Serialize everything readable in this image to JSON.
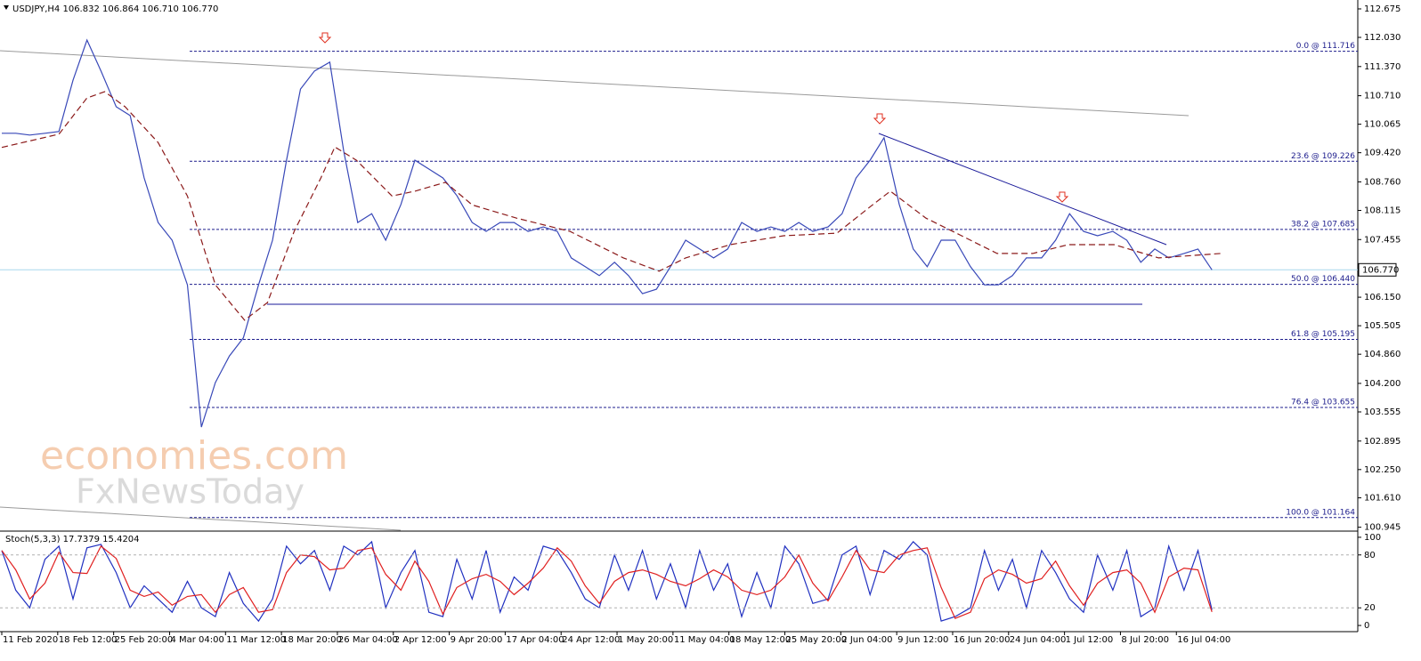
{
  "chart_data": [
    {
      "type": "line",
      "title": "USDJPY,H4  106.832 106.864 106.710 106.770",
      "annotations": [
        "economies.com",
        "FxNewsToday"
      ],
      "xlim": [
        0,
        1066
      ],
      "ylim": [
        100.857,
        112.876
      ],
      "xticks": [
        {
          "value": 0,
          "label": "11 Feb 2020"
        },
        {
          "value": 44,
          "label": "18 Feb 12:00"
        },
        {
          "value": 88,
          "label": "25 Feb 20:00"
        },
        {
          "value": 132,
          "label": "4 Mar 04:00"
        },
        {
          "value": 176,
          "label": "11 Mar 12:00"
        },
        {
          "value": 220,
          "label": "18 Mar 20:00"
        },
        {
          "value": 264,
          "label": "26 Mar 04:00"
        },
        {
          "value": 308,
          "label": "2 Apr 12:00"
        },
        {
          "value": 352,
          "label": "9 Apr 20:00"
        },
        {
          "value": 396,
          "label": "17 Apr 04:00"
        },
        {
          "value": 440,
          "label": "24 Apr 12:00"
        },
        {
          "value": 484,
          "label": "1 May 20:00"
        },
        {
          "value": 528,
          "label": "11 May 04:00"
        },
        {
          "value": 572,
          "label": "18 May 12:00"
        },
        {
          "value": 616,
          "label": "25 May 20:00"
        },
        {
          "value": 660,
          "label": "2 Jun 04:00"
        },
        {
          "value": 704,
          "label": "9 Jun 12:00"
        },
        {
          "value": 748,
          "label": "16 Jun 20:00"
        },
        {
          "value": 792,
          "label": "24 Jun 04:00"
        },
        {
          "value": 836,
          "label": "1 Jul 12:00"
        },
        {
          "value": 880,
          "label": "8 Jul 20:00"
        },
        {
          "value": 924,
          "label": "16 Jul 04:00"
        }
      ],
      "yticks": [
        {
          "value": 112.675,
          "label": "112.675"
        },
        {
          "value": 112.03,
          "label": "112.030"
        },
        {
          "value": 111.37,
          "label": "111.370"
        },
        {
          "value": 110.71,
          "label": "110.710"
        },
        {
          "value": 110.065,
          "label": "110.065"
        },
        {
          "value": 109.42,
          "label": "109.420"
        },
        {
          "value": 108.76,
          "label": "108.760"
        },
        {
          "value": 108.115,
          "label": "108.115"
        },
        {
          "value": 107.455,
          "label": "107.455"
        },
        {
          "value": 106.15,
          "label": "106.150"
        },
        {
          "value": 105.505,
          "label": "105.505"
        },
        {
          "value": 104.86,
          "label": "104.860"
        },
        {
          "value": 104.2,
          "label": "104.200"
        },
        {
          "value": 103.555,
          "label": "103.555"
        },
        {
          "value": 102.895,
          "label": "102.895"
        },
        {
          "value": 102.25,
          "label": "102.250"
        },
        {
          "value": 101.61,
          "label": "101.610"
        },
        {
          "value": 100.945,
          "label": "100.945"
        }
      ],
      "last_price": {
        "value": 106.77,
        "label": "106.770"
      },
      "fib_levels": [
        {
          "value": 111.716,
          "label": "0.0 @ 111.716"
        },
        {
          "value": 109.226,
          "label": "23.6 @ 109.226"
        },
        {
          "value": 107.685,
          "label": "38.2 @ 107.685"
        },
        {
          "value": 106.44,
          "label": "50.0 @ 106.440"
        },
        {
          "value": 105.195,
          "label": "61.8 @ 105.195"
        },
        {
          "value": 103.655,
          "label": "76.4 @ 103.655"
        },
        {
          "value": 101.164,
          "label": "100.0 @ 101.164"
        }
      ],
      "series": [
        {
          "color": "#3848b8",
          "style": "solid",
          "x": [
            0,
            11,
            22,
            34,
            45,
            56,
            67,
            78,
            90,
            101,
            112,
            123,
            134,
            146,
            157,
            168,
            179,
            190,
            202,
            213,
            224,
            235,
            246,
            258,
            269,
            280,
            291,
            302,
            314,
            325,
            336,
            347,
            358,
            370,
            381,
            392,
            403,
            414,
            426,
            437,
            448,
            459,
            470,
            482,
            493,
            504,
            515,
            526,
            538,
            549,
            560,
            571,
            582,
            594,
            605,
            616,
            627,
            638,
            650,
            661,
            672,
            683,
            694,
            706,
            717,
            728,
            739,
            750,
            762,
            773,
            784,
            795,
            806,
            818,
            829,
            840,
            851,
            862,
            874,
            885,
            896,
            907,
            918,
            930,
            941,
            952
          ],
          "values": [
            109.86,
            109.86,
            109.82,
            109.86,
            109.9,
            111.06,
            111.97,
            111.27,
            110.46,
            110.26,
            108.85,
            107.84,
            107.44,
            106.43,
            103.21,
            104.22,
            104.82,
            105.23,
            106.43,
            107.44,
            109.25,
            110.86,
            111.27,
            111.47,
            109.45,
            107.84,
            108.04,
            107.44,
            108.25,
            109.25,
            109.05,
            108.85,
            108.45,
            107.84,
            107.64,
            107.84,
            107.84,
            107.64,
            107.74,
            107.64,
            107.04,
            106.84,
            106.64,
            106.94,
            106.64,
            106.23,
            106.33,
            106.84,
            107.44,
            107.24,
            107.04,
            107.24,
            107.84,
            107.64,
            107.74,
            107.64,
            107.84,
            107.64,
            107.74,
            108.04,
            108.85,
            109.25,
            109.76,
            108.25,
            107.24,
            106.84,
            107.44,
            107.44,
            106.84,
            106.43,
            106.43,
            106.64,
            107.04,
            107.04,
            107.44,
            108.04,
            107.64,
            107.54,
            107.64,
            107.44,
            106.94,
            107.24,
            107.04,
            107.14,
            107.24,
            106.77
          ]
        },
        {
          "color": "#8b1a1a",
          "style": "dashed",
          "x": [
            0,
            45,
            67,
            81,
            97,
            123,
            146,
            168,
            191,
            209,
            230,
            251,
            262,
            279,
            307,
            325,
            349,
            370,
            405,
            447,
            489,
            517,
            538,
            573,
            615,
            657,
            685,
            699,
            727,
            755,
            783,
            811,
            839,
            875,
            910,
            959
          ],
          "values": [
            109.54,
            109.84,
            110.66,
            110.8,
            110.46,
            109.65,
            108.44,
            106.43,
            105.63,
            106.03,
            107.64,
            108.85,
            109.55,
            109.25,
            108.44,
            108.55,
            108.75,
            108.24,
            107.94,
            107.64,
            107.04,
            106.74,
            107.04,
            107.34,
            107.54,
            107.6,
            108.24,
            108.55,
            107.94,
            107.54,
            107.14,
            107.14,
            107.34,
            107.34,
            107.04,
            107.14
          ]
        }
      ]
    },
    {
      "type": "line",
      "title": "Stoch(5,3,3) 17.7379 15.4204",
      "xlim": [
        0,
        1066
      ],
      "ylim": [
        -7,
        107
      ],
      "yticks": [
        100,
        80,
        20,
        0
      ],
      "levels": [
        80,
        20
      ],
      "series": [
        {
          "color": "#2030c0",
          "style": "solid",
          "x": [
            0,
            11,
            22,
            34,
            45,
            56,
            67,
            78,
            90,
            101,
            112,
            123,
            134,
            146,
            157,
            168,
            179,
            190,
            202,
            213,
            224,
            235,
            246,
            258,
            269,
            280,
            291,
            302,
            314,
            325,
            336,
            347,
            358,
            370,
            381,
            392,
            403,
            414,
            426,
            437,
            448,
            459,
            470,
            482,
            493,
            504,
            515,
            526,
            538,
            549,
            560,
            571,
            582,
            594,
            605,
            616,
            627,
            638,
            650,
            661,
            672,
            683,
            694,
            706,
            717,
            728,
            739,
            750,
            762,
            773,
            784,
            795,
            806,
            818,
            829,
            840,
            851,
            862,
            874,
            885,
            896,
            907,
            918,
            930,
            941,
            952
          ],
          "values": [
            85,
            40,
            20,
            75,
            90,
            30,
            88,
            92,
            60,
            20,
            45,
            30,
            15,
            50,
            20,
            10,
            60,
            25,
            5,
            30,
            90,
            70,
            85,
            40,
            90,
            80,
            95,
            20,
            60,
            85,
            15,
            10,
            75,
            30,
            85,
            15,
            55,
            40,
            90,
            85,
            60,
            30,
            20,
            80,
            40,
            85,
            30,
            70,
            20,
            85,
            40,
            70,
            10,
            60,
            20,
            90,
            70,
            25,
            30,
            80,
            90,
            35,
            85,
            75,
            95,
            80,
            5,
            10,
            20,
            85,
            40,
            75,
            20,
            85,
            60,
            30,
            15,
            80,
            40,
            85,
            10,
            20,
            90,
            40,
            85,
            17.7379
          ]
        },
        {
          "color": "#e02020",
          "style": "solid",
          "x": [
            0,
            11,
            22,
            34,
            45,
            56,
            67,
            78,
            90,
            101,
            112,
            123,
            134,
            146,
            157,
            168,
            179,
            190,
            202,
            213,
            224,
            235,
            246,
            258,
            269,
            280,
            291,
            302,
            314,
            325,
            336,
            347,
            358,
            370,
            381,
            392,
            403,
            414,
            426,
            437,
            448,
            459,
            470,
            482,
            493,
            504,
            515,
            526,
            538,
            549,
            560,
            571,
            582,
            594,
            605,
            616,
            627,
            638,
            650,
            661,
            672,
            683,
            694,
            706,
            717,
            728,
            739,
            750,
            762,
            773,
            784,
            795,
            806,
            818,
            829,
            840,
            851,
            862,
            874,
            885,
            896,
            907,
            918,
            930,
            941,
            952
          ],
          "values": [
            85,
            63,
            30,
            48,
            83,
            60,
            59,
            90,
            76,
            40,
            33,
            38,
            23,
            33,
            35,
            15,
            35,
            43,
            15,
            18,
            60,
            80,
            78,
            63,
            65,
            85,
            88,
            58,
            40,
            73,
            50,
            13,
            43,
            53,
            58,
            50,
            35,
            48,
            65,
            88,
            73,
            45,
            25,
            50,
            60,
            63,
            58,
            50,
            45,
            53,
            63,
            55,
            40,
            35,
            40,
            55,
            80,
            48,
            28,
            55,
            85,
            63,
            60,
            80,
            85,
            88,
            43,
            8,
            15,
            53,
            63,
            58,
            48,
            53,
            73,
            45,
            23,
            48,
            60,
            63,
            48,
            15,
            55,
            65,
            63,
            15.4204
          ]
        }
      ]
    }
  ]
}
